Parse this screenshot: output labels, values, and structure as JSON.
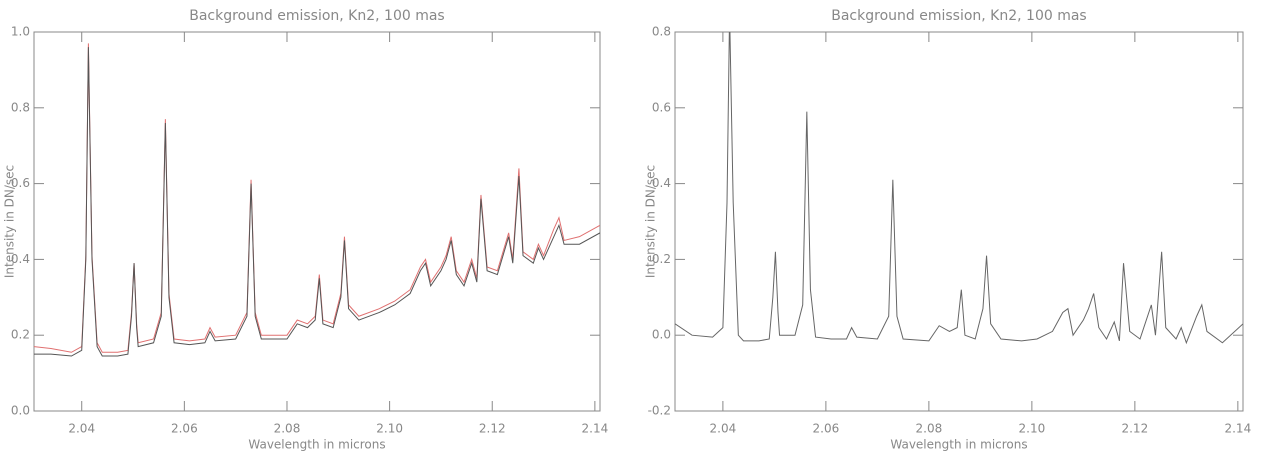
{
  "chart_data": [
    {
      "type": "line",
      "title": "Background emission, Kn2, 100 mas",
      "x_label": "Wavelength in microns",
      "y_label": "Intensity in DN/sec",
      "x": [
        2.0307,
        2.034,
        2.038,
        2.04,
        2.0408,
        2.0413,
        2.042,
        2.043,
        2.044,
        2.047,
        2.049,
        2.0497,
        2.0502,
        2.0507,
        2.051,
        2.054,
        2.0555,
        2.0563,
        2.057,
        2.058,
        2.061,
        2.064,
        2.065,
        2.066,
        2.07,
        2.0722,
        2.073,
        2.0738,
        2.075,
        2.08,
        2.082,
        2.084,
        2.0855,
        2.0863,
        2.087,
        2.089,
        2.0905,
        2.0912,
        2.092,
        2.094,
        2.098,
        2.101,
        2.104,
        2.106,
        2.107,
        2.108,
        2.11,
        2.111,
        2.112,
        2.113,
        2.1145,
        2.116,
        2.117,
        2.1178,
        2.119,
        2.121,
        2.1232,
        2.124,
        2.1252,
        2.126,
        2.128,
        2.129,
        2.13,
        2.132,
        2.133,
        2.134,
        2.137,
        2.141
      ],
      "series": [
        {
          "color": "#e07070",
          "values": [
            0.17,
            0.165,
            0.155,
            0.17,
            0.41,
            0.97,
            0.41,
            0.18,
            0.155,
            0.155,
            0.16,
            0.26,
            0.39,
            0.23,
            0.18,
            0.19,
            0.26,
            0.77,
            0.31,
            0.19,
            0.185,
            0.19,
            0.22,
            0.195,
            0.2,
            0.26,
            0.61,
            0.26,
            0.2,
            0.2,
            0.24,
            0.23,
            0.25,
            0.36,
            0.24,
            0.23,
            0.31,
            0.46,
            0.28,
            0.25,
            0.27,
            0.29,
            0.32,
            0.38,
            0.4,
            0.34,
            0.38,
            0.41,
            0.46,
            0.37,
            0.34,
            0.4,
            0.35,
            0.57,
            0.38,
            0.37,
            0.47,
            0.4,
            0.64,
            0.42,
            0.4,
            0.44,
            0.41,
            0.48,
            0.51,
            0.45,
            0.46,
            0.49
          ]
        },
        {
          "color": "#555555",
          "values": [
            0.15,
            0.15,
            0.145,
            0.16,
            0.4,
            0.96,
            0.4,
            0.17,
            0.145,
            0.145,
            0.15,
            0.25,
            0.39,
            0.22,
            0.17,
            0.18,
            0.25,
            0.76,
            0.3,
            0.18,
            0.175,
            0.18,
            0.21,
            0.185,
            0.19,
            0.25,
            0.6,
            0.25,
            0.19,
            0.19,
            0.23,
            0.22,
            0.24,
            0.35,
            0.23,
            0.22,
            0.3,
            0.45,
            0.27,
            0.24,
            0.26,
            0.28,
            0.31,
            0.37,
            0.39,
            0.33,
            0.37,
            0.4,
            0.45,
            0.36,
            0.33,
            0.39,
            0.34,
            0.56,
            0.37,
            0.36,
            0.46,
            0.39,
            0.62,
            0.41,
            0.39,
            0.43,
            0.4,
            0.46,
            0.49,
            0.44,
            0.44,
            0.47
          ]
        }
      ],
      "xlim": [
        2.0307,
        2.141
      ],
      "xticks": [
        2.04,
        2.06,
        2.08,
        {
          "value": 2.1,
          "label": "2.10"
        },
        2.12,
        2.14
      ],
      "ylim": [
        0,
        1.0
      ],
      "yticks": [
        {
          "value": 0,
          "label": "0.0"
        },
        0.2,
        0.4,
        0.6,
        0.8,
        {
          "value": 1.0,
          "label": "1.0"
        }
      ]
    },
    {
      "type": "line",
      "title": "Background emission, Kn2, 100 mas",
      "x_label": "Wavelength in microns",
      "y_label": "Intensity in DN/sec",
      "x": [
        2.0307,
        2.034,
        2.038,
        2.04,
        2.0408,
        2.0413,
        2.042,
        2.043,
        2.044,
        2.047,
        2.049,
        2.0497,
        2.0502,
        2.0507,
        2.051,
        2.054,
        2.0555,
        2.0563,
        2.057,
        2.058,
        2.061,
        2.064,
        2.065,
        2.066,
        2.07,
        2.0722,
        2.073,
        2.0738,
        2.075,
        2.08,
        2.082,
        2.084,
        2.0855,
        2.0863,
        2.087,
        2.089,
        2.0905,
        2.0912,
        2.092,
        2.094,
        2.098,
        2.101,
        2.104,
        2.106,
        2.107,
        2.108,
        2.11,
        2.111,
        2.112,
        2.113,
        2.1145,
        2.116,
        2.117,
        2.1178,
        2.119,
        2.121,
        2.1232,
        2.124,
        2.1252,
        2.126,
        2.128,
        2.129,
        2.13,
        2.132,
        2.133,
        2.134,
        2.137,
        2.141
      ],
      "series": [
        {
          "color": "#666666",
          "values": [
            0.03,
            0.0,
            -0.005,
            0.02,
            0.35,
            0.85,
            0.35,
            0.0,
            -0.015,
            -0.015,
            -0.01,
            0.1,
            0.22,
            0.06,
            0.0,
            0.0,
            0.08,
            0.59,
            0.12,
            -0.005,
            -0.01,
            -0.01,
            0.02,
            -0.005,
            -0.01,
            0.05,
            0.41,
            0.05,
            -0.01,
            -0.015,
            0.025,
            0.01,
            0.02,
            0.12,
            0.0,
            -0.01,
            0.07,
            0.21,
            0.03,
            -0.01,
            -0.015,
            -0.01,
            0.01,
            0.06,
            0.07,
            0.0,
            0.04,
            0.07,
            0.11,
            0.02,
            -0.01,
            0.035,
            -0.015,
            0.19,
            0.01,
            -0.01,
            0.08,
            0.0,
            0.22,
            0.02,
            -0.01,
            0.02,
            -0.02,
            0.05,
            0.08,
            0.01,
            -0.02,
            0.03
          ]
        }
      ],
      "xlim": [
        2.0307,
        2.141
      ],
      "xticks": [
        2.04,
        2.06,
        2.08,
        {
          "value": 2.1,
          "label": "2.10"
        },
        2.12,
        2.14
      ],
      "ylim": [
        -0.2,
        0.8
      ],
      "yticks": [
        -0.2,
        {
          "value": 0,
          "label": "0.0"
        },
        0.2,
        0.4,
        0.6,
        0.8
      ]
    }
  ]
}
